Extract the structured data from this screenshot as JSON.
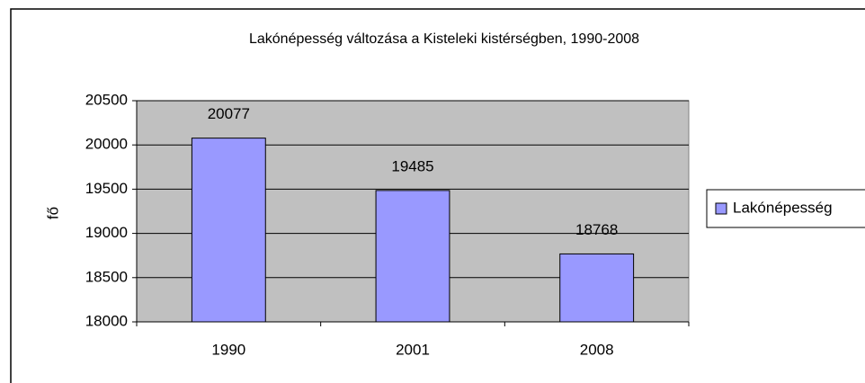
{
  "chart_data": {
    "type": "bar",
    "title": "Lakónépesség változása a Kisteleki kistérségben, 1990-2008",
    "y_label": "fő",
    "categories": [
      "1990",
      "2001",
      "2008"
    ],
    "series": [
      {
        "name": "Lakónépesség",
        "color": "#9999ff",
        "values": [
          20077,
          19485,
          18768
        ]
      }
    ],
    "ylim": [
      18000,
      20500
    ],
    "yticks": [
      18000,
      18500,
      19000,
      19500,
      20000,
      20500
    ],
    "grid": true,
    "plot_background": "#c0c0c0",
    "legend": "right"
  }
}
